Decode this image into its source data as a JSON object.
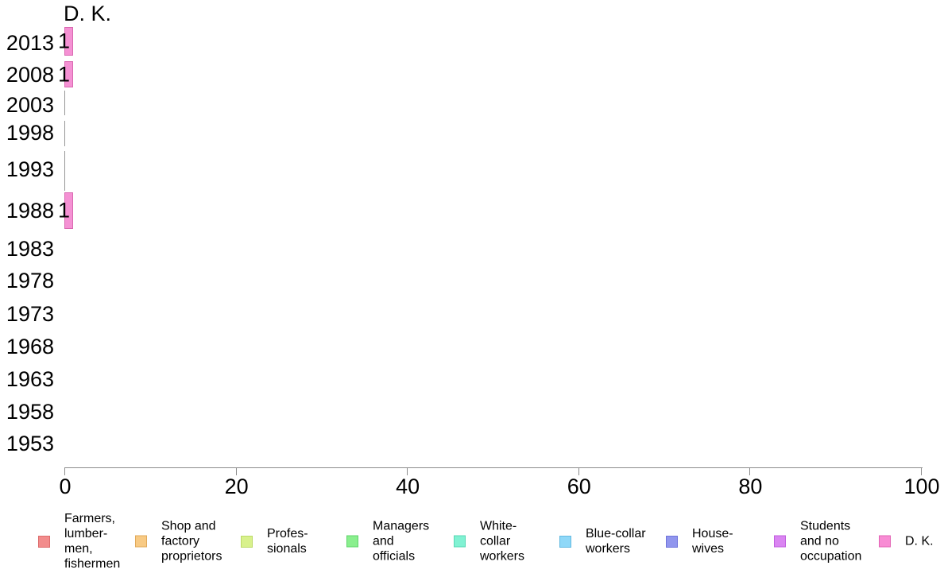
{
  "chart_data": {
    "type": "bar",
    "orientation": "horizontal",
    "title": "D. K.",
    "categories": [
      "2013",
      "2008",
      "2003",
      "1998",
      "1993",
      "1988",
      "1983",
      "1978",
      "1973",
      "1968",
      "1963",
      "1958",
      "1953"
    ],
    "series": [
      {
        "name": "D. K.",
        "values": [
          1,
          1,
          0,
          0,
          0,
          1,
          null,
          null,
          null,
          null,
          null,
          null,
          null
        ]
      }
    ],
    "bar_value_labels": [
      "1",
      "1",
      null,
      null,
      null,
      "1",
      null,
      null,
      null,
      null,
      null,
      null,
      null
    ],
    "xlabel": "",
    "ylabel": "",
    "xlim": [
      0,
      100
    ],
    "x_tick_values": [
      0,
      20,
      40,
      60,
      80,
      100
    ],
    "x_tick_labels": [
      "0",
      "20",
      "40",
      "60",
      "80",
      "100"
    ],
    "grid": false,
    "legend_position": "bottom",
    "bar_color": "#f591d4",
    "bar_border_color": "#d968b0",
    "zero_bar_color": "#969696",
    "axis_color": "#8c8c8c",
    "legend": [
      {
        "label": "Farmers,\nlumber-\nmen,\nfishermen",
        "color": "#f28c8c",
        "border": "#dc6b6b"
      },
      {
        "label": "Shop and\nfactory\nproprietors",
        "color": "#f8ca84",
        "border": "#e0a95a"
      },
      {
        "label": "Profes-\nsionals",
        "color": "#d8f18c",
        "border": "#bcd968"
      },
      {
        "label": "Managers\nand\nofficials",
        "color": "#8aef8e",
        "border": "#60d46b"
      },
      {
        "label": "White-\ncollar\nworkers",
        "color": "#81f2d3",
        "border": "#58d8b4"
      },
      {
        "label": "Blue-collar\nworkers",
        "color": "#8fd8f8",
        "border": "#62b9e0"
      },
      {
        "label": "House-\nwives",
        "color": "#9196ee",
        "border": "#6f74da"
      },
      {
        "label": "Students\nand no\noccupation",
        "color": "#da85f2",
        "border": "#c05ede"
      },
      {
        "label": "D. K.",
        "color": "#f88cd4",
        "border": "#e263b4"
      }
    ]
  }
}
